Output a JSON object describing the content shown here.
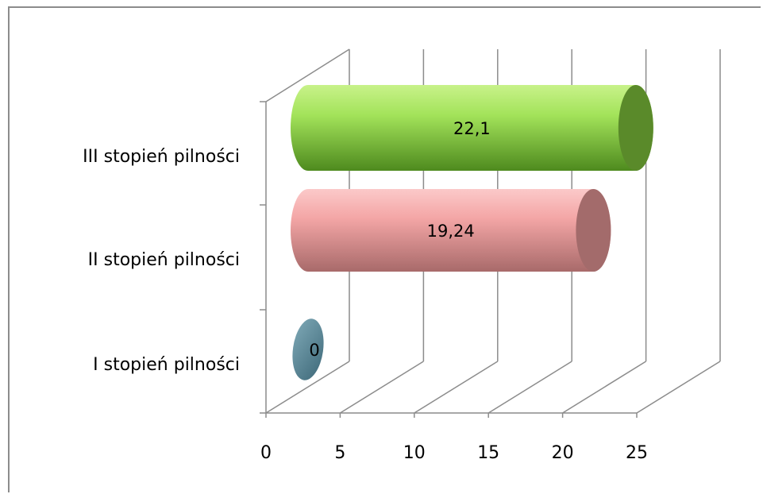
{
  "chart_data": {
    "type": "bar",
    "orientation": "horizontal",
    "style": "3d-cylinder",
    "categories": [
      "I stopień pilności",
      "II stopień pilności",
      "III stopień pilności"
    ],
    "values": [
      0,
      19.24,
      22.1
    ],
    "data_labels": [
      "0",
      "19,24",
      "22,1"
    ],
    "xticks": [
      "0",
      "5",
      "10",
      "15",
      "20",
      "25"
    ],
    "xlim": [
      0,
      25
    ],
    "grid": true,
    "legend": "none",
    "colors": {
      "I stopień pilności": "#5b8393",
      "II stopień pilności": "#f4a6a6",
      "III stopień pilności": "#94d94f"
    }
  }
}
